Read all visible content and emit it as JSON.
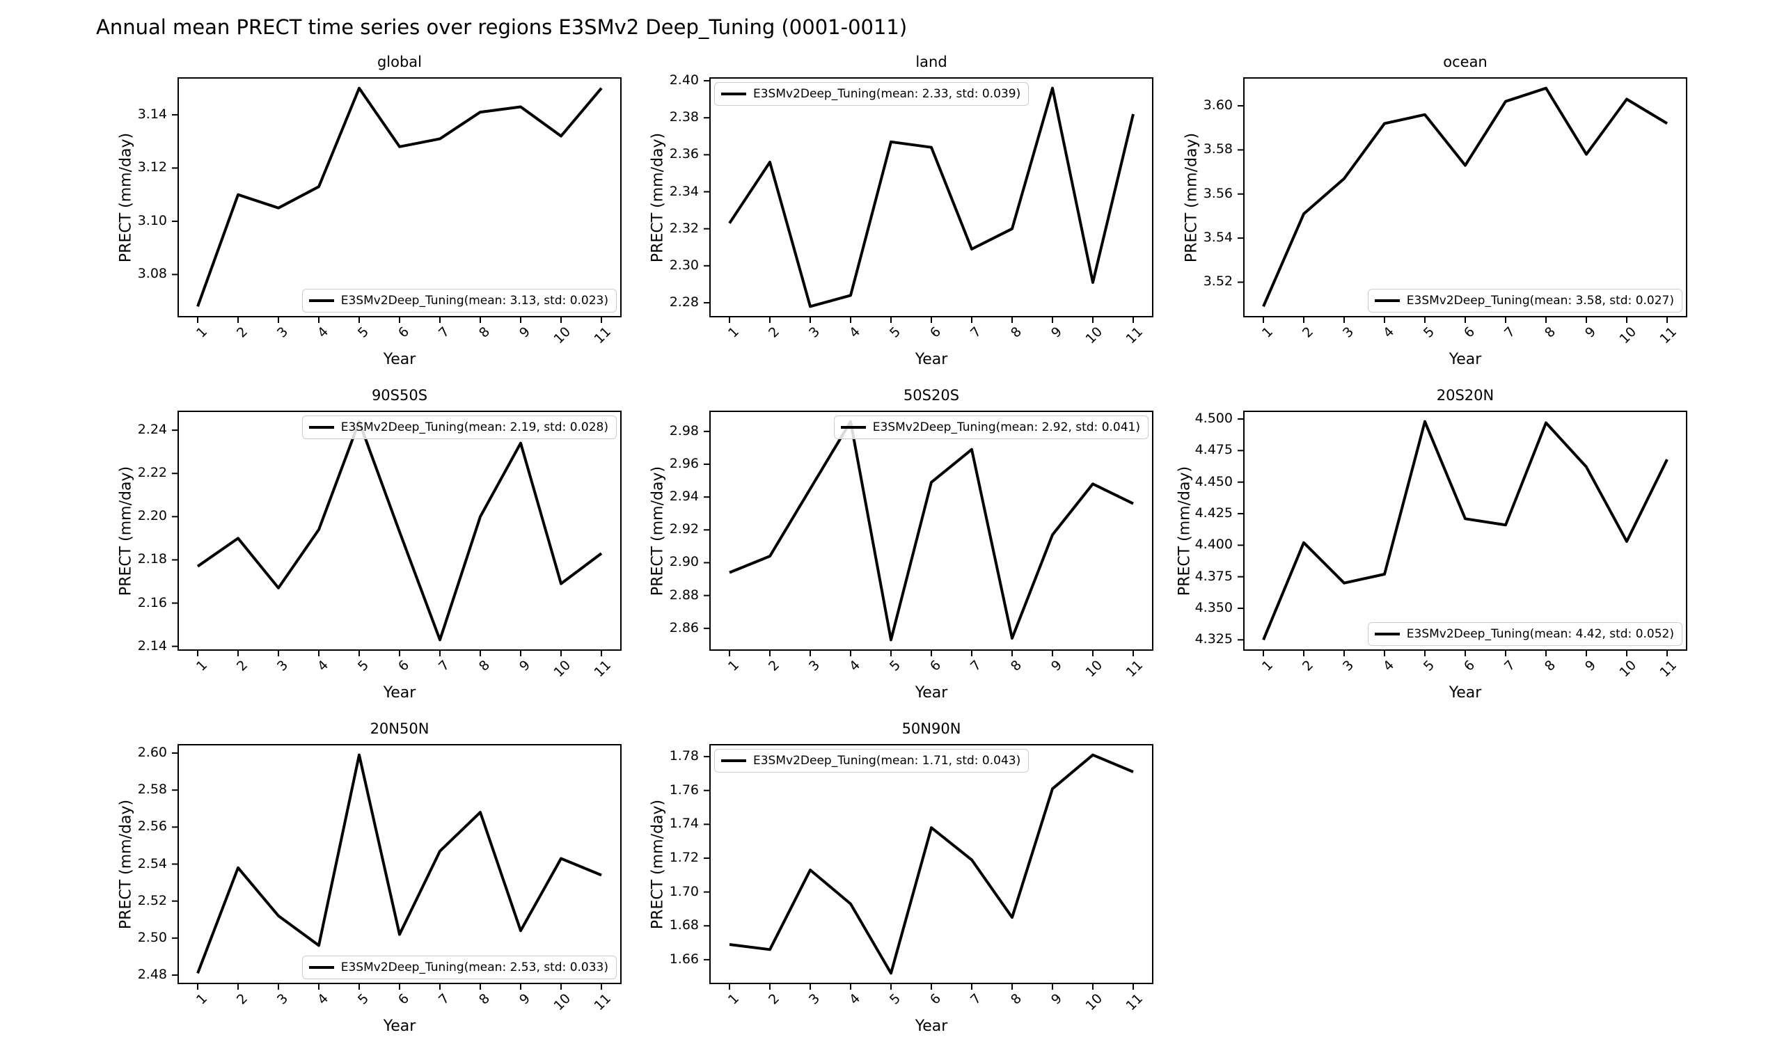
{
  "figure_title": "Annual mean PRECT time series over regions E3SMv2 Deep_Tuning (0001-0011)",
  "colors": {
    "line": "#000000",
    "legend_border": "#cccccc",
    "background": "#ffffff"
  },
  "chart_data": [
    {
      "type": "line",
      "title": "global",
      "grid_row": 0,
      "grid_col": 0,
      "xlabel": "Year",
      "ylabel": "PRECT (mm/day)",
      "series": [
        {
          "name": "E3SMv2Deep_Tuning",
          "x": [
            1,
            2,
            3,
            4,
            5,
            6,
            7,
            8,
            9,
            10,
            11
          ],
          "y": [
            3.068,
            3.11,
            3.105,
            3.113,
            3.15,
            3.128,
            3.131,
            3.141,
            3.143,
            3.132,
            3.15
          ]
        }
      ],
      "xticks": [
        1,
        2,
        3,
        4,
        5,
        6,
        7,
        8,
        9,
        10,
        11
      ],
      "yticks": [
        3.08,
        3.1,
        3.12,
        3.14
      ],
      "ytick_decimals": 2,
      "xlim": [
        0.5,
        11.5
      ],
      "legend": {
        "label": "E3SMv2Deep_Tuning(mean: 3.13, std: 0.023)",
        "mean": 3.13,
        "std": 0.023,
        "loc": "lower right"
      }
    },
    {
      "type": "line",
      "title": "land",
      "grid_row": 0,
      "grid_col": 1,
      "xlabel": "Year",
      "ylabel": "PRECT (mm/day)",
      "series": [
        {
          "name": "E3SMv2Deep_Tuning",
          "x": [
            1,
            2,
            3,
            4,
            5,
            6,
            7,
            8,
            9,
            10,
            11
          ],
          "y": [
            2.323,
            2.356,
            2.278,
            2.284,
            2.367,
            2.364,
            2.309,
            2.32,
            2.396,
            2.291,
            2.382
          ]
        }
      ],
      "xticks": [
        1,
        2,
        3,
        4,
        5,
        6,
        7,
        8,
        9,
        10,
        11
      ],
      "yticks": [
        2.28,
        2.3,
        2.32,
        2.34,
        2.36,
        2.38,
        2.4
      ],
      "ytick_decimals": 2,
      "xlim": [
        0.5,
        11.5
      ],
      "legend": {
        "label": "E3SMv2Deep_Tuning(mean: 2.33, std: 0.039)",
        "mean": 2.33,
        "std": 0.039,
        "loc": "upper left"
      }
    },
    {
      "type": "line",
      "title": "ocean",
      "grid_row": 0,
      "grid_col": 2,
      "xlabel": "Year",
      "ylabel": "PRECT (mm/day)",
      "series": [
        {
          "name": "E3SMv2Deep_Tuning",
          "x": [
            1,
            2,
            3,
            4,
            5,
            6,
            7,
            8,
            9,
            10,
            11
          ],
          "y": [
            3.509,
            3.551,
            3.567,
            3.592,
            3.596,
            3.573,
            3.602,
            3.608,
            3.578,
            3.603,
            3.592
          ]
        }
      ],
      "xticks": [
        1,
        2,
        3,
        4,
        5,
        6,
        7,
        8,
        9,
        10,
        11
      ],
      "yticks": [
        3.52,
        3.54,
        3.56,
        3.58,
        3.6
      ],
      "ytick_decimals": 2,
      "xlim": [
        0.5,
        11.5
      ],
      "legend": {
        "label": "E3SMv2Deep_Tuning(mean: 3.58, std: 0.027)",
        "mean": 3.58,
        "std": 0.027,
        "loc": "lower right"
      }
    },
    {
      "type": "line",
      "title": "90S50S",
      "grid_row": 1,
      "grid_col": 0,
      "xlabel": "Year",
      "ylabel": "PRECT (mm/day)",
      "series": [
        {
          "name": "E3SMv2Deep_Tuning",
          "x": [
            1,
            2,
            3,
            4,
            5,
            6,
            7,
            8,
            9,
            10,
            11
          ],
          "y": [
            2.177,
            2.19,
            2.167,
            2.194,
            2.244,
            2.193,
            2.143,
            2.2,
            2.234,
            2.169,
            2.183
          ]
        }
      ],
      "xticks": [
        1,
        2,
        3,
        4,
        5,
        6,
        7,
        8,
        9,
        10,
        11
      ],
      "yticks": [
        2.14,
        2.16,
        2.18,
        2.2,
        2.22,
        2.24
      ],
      "ytick_decimals": 2,
      "xlim": [
        0.5,
        11.5
      ],
      "legend": {
        "label": "E3SMv2Deep_Tuning(mean: 2.19, std: 0.028)",
        "mean": 2.19,
        "std": 0.028,
        "loc": "upper right"
      }
    },
    {
      "type": "line",
      "title": "50S20S",
      "grid_row": 1,
      "grid_col": 1,
      "xlabel": "Year",
      "ylabel": "PRECT (mm/day)",
      "series": [
        {
          "name": "E3SMv2Deep_Tuning",
          "x": [
            1,
            2,
            3,
            4,
            5,
            6,
            7,
            8,
            9,
            10,
            11
          ],
          "y": [
            2.894,
            2.904,
            2.945,
            2.986,
            2.853,
            2.949,
            2.969,
            2.854,
            2.917,
            2.948,
            2.936
          ]
        }
      ],
      "xticks": [
        1,
        2,
        3,
        4,
        5,
        6,
        7,
        8,
        9,
        10,
        11
      ],
      "yticks": [
        2.86,
        2.88,
        2.9,
        2.92,
        2.94,
        2.96,
        2.98
      ],
      "ytick_decimals": 2,
      "xlim": [
        0.5,
        11.5
      ],
      "legend": {
        "label": "E3SMv2Deep_Tuning(mean: 2.92, std: 0.041)",
        "mean": 2.92,
        "std": 0.041,
        "loc": "upper right"
      }
    },
    {
      "type": "line",
      "title": "20S20N",
      "grid_row": 1,
      "grid_col": 2,
      "xlabel": "Year",
      "ylabel": "PRECT (mm/day)",
      "series": [
        {
          "name": "E3SMv2Deep_Tuning",
          "x": [
            1,
            2,
            3,
            4,
            5,
            6,
            7,
            8,
            9,
            10,
            11
          ],
          "y": [
            4.325,
            4.402,
            4.37,
            4.377,
            4.498,
            4.421,
            4.416,
            4.497,
            4.462,
            4.403,
            4.468
          ]
        }
      ],
      "xticks": [
        1,
        2,
        3,
        4,
        5,
        6,
        7,
        8,
        9,
        10,
        11
      ],
      "yticks": [
        4.325,
        4.35,
        4.375,
        4.4,
        4.425,
        4.45,
        4.475,
        4.5
      ],
      "ytick_decimals": 3,
      "xlim": [
        0.5,
        11.5
      ],
      "legend": {
        "label": "E3SMv2Deep_Tuning(mean: 4.42, std: 0.052)",
        "mean": 4.42,
        "std": 0.052,
        "loc": "lower right"
      }
    },
    {
      "type": "line",
      "title": "20N50N",
      "grid_row": 2,
      "grid_col": 0,
      "xlabel": "Year",
      "ylabel": "PRECT (mm/day)",
      "series": [
        {
          "name": "E3SMv2Deep_Tuning",
          "x": [
            1,
            2,
            3,
            4,
            5,
            6,
            7,
            8,
            9,
            10,
            11
          ],
          "y": [
            2.481,
            2.538,
            2.512,
            2.496,
            2.599,
            2.502,
            2.547,
            2.568,
            2.504,
            2.543,
            2.534
          ]
        }
      ],
      "xticks": [
        1,
        2,
        3,
        4,
        5,
        6,
        7,
        8,
        9,
        10,
        11
      ],
      "yticks": [
        2.48,
        2.5,
        2.52,
        2.54,
        2.56,
        2.58,
        2.6
      ],
      "ytick_decimals": 2,
      "xlim": [
        0.5,
        11.5
      ],
      "legend": {
        "label": "E3SMv2Deep_Tuning(mean: 2.53, std: 0.033)",
        "mean": 2.53,
        "std": 0.033,
        "loc": "lower right"
      }
    },
    {
      "type": "line",
      "title": "50N90N",
      "grid_row": 2,
      "grid_col": 1,
      "xlabel": "Year",
      "ylabel": "PRECT (mm/day)",
      "series": [
        {
          "name": "E3SMv2Deep_Tuning",
          "x": [
            1,
            2,
            3,
            4,
            5,
            6,
            7,
            8,
            9,
            10,
            11
          ],
          "y": [
            1.669,
            1.666,
            1.713,
            1.693,
            1.652,
            1.738,
            1.719,
            1.685,
            1.761,
            1.781,
            1.771
          ]
        }
      ],
      "xticks": [
        1,
        2,
        3,
        4,
        5,
        6,
        7,
        8,
        9,
        10,
        11
      ],
      "yticks": [
        1.66,
        1.68,
        1.7,
        1.72,
        1.74,
        1.76,
        1.78
      ],
      "ytick_decimals": 2,
      "xlim": [
        0.5,
        11.5
      ],
      "legend": {
        "label": "E3SMv2Deep_Tuning(mean: 1.71, std: 0.043)",
        "mean": 1.71,
        "std": 0.043,
        "loc": "upper left"
      }
    }
  ]
}
